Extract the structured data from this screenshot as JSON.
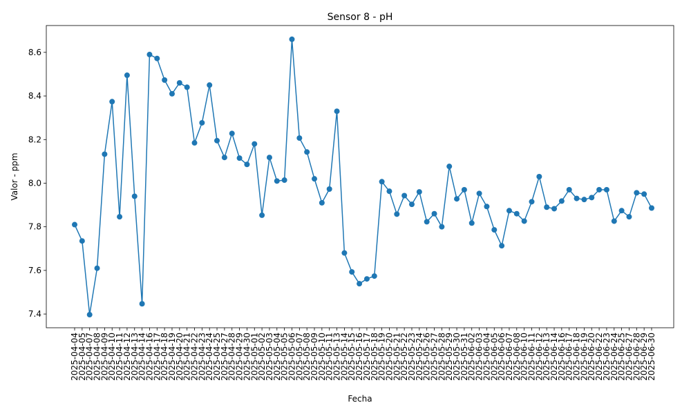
{
  "chart_data": {
    "type": "line",
    "title": "Sensor 8 - pH",
    "x_label": "Fecha",
    "y_label": "Valor - ppm",
    "categories": [
      "2025-04-04",
      "2025-04-05",
      "2025-04-07",
      "2025-04-08",
      "2025-04-09",
      "2025-04-10",
      "2025-04-11",
      "2025-04-12",
      "2025-04-13",
      "2025-04-14",
      "2025-04-16",
      "2025-04-17",
      "2025-04-18",
      "2025-04-19",
      "2025-04-20",
      "2025-04-21",
      "2025-04-22",
      "2025-04-23",
      "2025-04-24",
      "2025-04-25",
      "2025-04-27",
      "2025-04-28",
      "2025-04-29",
      "2025-04-30",
      "2025-05-01",
      "2025-05-02",
      "2025-05-03",
      "2025-05-04",
      "2025-05-05",
      "2025-05-06",
      "2025-05-07",
      "2025-05-08",
      "2025-05-09",
      "2025-05-10",
      "2025-05-11",
      "2025-05-13",
      "2025-05-14",
      "2025-05-15",
      "2025-05-16",
      "2025-05-17",
      "2025-05-18",
      "2025-05-19",
      "2025-05-20",
      "2025-05-21",
      "2025-05-22",
      "2025-05-23",
      "2025-05-24",
      "2025-05-26",
      "2025-05-27",
      "2025-05-28",
      "2025-05-29",
      "2025-05-30",
      "2025-05-31",
      "2025-06-02",
      "2025-06-03",
      "2025-06-04",
      "2025-06-05",
      "2025-06-06",
      "2025-06-07",
      "2025-06-08",
      "2025-06-10",
      "2025-06-11",
      "2025-06-12",
      "2025-06-13",
      "2025-06-14",
      "2025-06-16",
      "2025-06-17",
      "2025-06-18",
      "2025-06-19",
      "2025-06-20",
      "2025-06-22",
      "2025-06-23",
      "2025-06-24",
      "2025-06-25",
      "2025-06-27",
      "2025-06-28",
      "2025-06-29",
      "2025-06-30"
    ],
    "series": [
      {
        "name": "pH",
        "color": "#1f77b4",
        "values": [
          7.81,
          7.735,
          7.397,
          7.61,
          8.133,
          8.374,
          7.846,
          8.495,
          7.94,
          7.447,
          8.59,
          8.572,
          8.473,
          8.41,
          8.46,
          8.44,
          8.185,
          8.277,
          8.45,
          8.195,
          8.118,
          8.228,
          8.115,
          8.086,
          8.18,
          7.853,
          8.118,
          8.01,
          8.014,
          8.66,
          8.207,
          8.143,
          8.02,
          7.91,
          7.973,
          8.33,
          7.68,
          7.593,
          7.539,
          7.561,
          7.574,
          8.007,
          7.963,
          7.858,
          7.943,
          7.903,
          7.96,
          7.823,
          7.86,
          7.8,
          8.077,
          7.928,
          7.97,
          7.817,
          7.953,
          7.893,
          7.786,
          7.713,
          7.874,
          7.86,
          7.826,
          7.915,
          8.03,
          7.89,
          7.883,
          7.918,
          7.97,
          7.93,
          7.925,
          7.934,
          7.97,
          7.97,
          7.826,
          7.874,
          7.846,
          7.956,
          7.95,
          7.886
        ]
      }
    ],
    "ylim": [
      7.337,
      8.723
    ],
    "yticks": [
      {
        "value": 7.4,
        "label": "7.4"
      },
      {
        "value": 7.6,
        "label": "7.6"
      },
      {
        "value": 7.8,
        "label": "7.8"
      },
      {
        "value": 8.0,
        "label": "8.0"
      },
      {
        "value": 8.2,
        "label": "8.2"
      },
      {
        "value": 8.4,
        "label": "8.4"
      },
      {
        "value": 8.6,
        "label": "8.6"
      }
    ],
    "grid": false
  }
}
